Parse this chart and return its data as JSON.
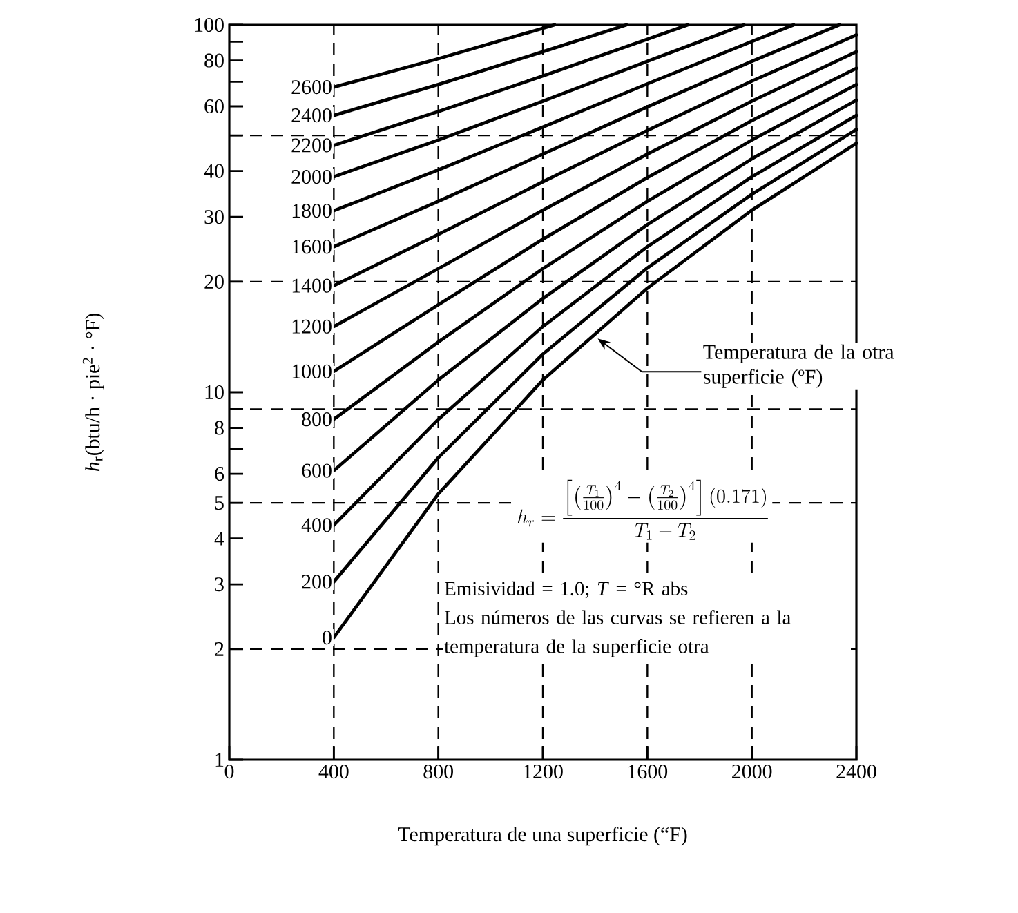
{
  "chart_data": {
    "type": "line",
    "log": "y",
    "xlabel": "Temperatura de una superficie (“F)",
    "ylabel": "*h*$_{r}$(btu/h · pie$^{2}$ · °F)",
    "xlim": [
      0,
      2400
    ],
    "ylim": [
      1,
      100
    ],
    "xticks": [
      0,
      400,
      800,
      1200,
      1600,
      2000,
      2400
    ],
    "yticks": [
      1,
      2,
      3,
      4,
      5,
      6,
      {
        "value": 7,
        "label": null
      },
      8,
      {
        "value": 9,
        "label": null
      },
      10,
      20,
      30,
      40,
      {
        "value": 50,
        "label": null
      },
      60,
      {
        "value": 70,
        "label": null
      },
      80,
      {
        "value": 90,
        "label": null
      },
      100
    ],
    "grid": false,
    "legend": false,
    "marker": "none",
    "line_style": "solid",
    "series": [
      {
        "name": "0",
        "color": "#000000",
        "x": [
          400,
          800,
          1200,
          1600,
          2000,
          2400
        ],
        "values": [
          2.15,
          5.29,
          10.8,
          19.2,
          31.3,
          47.6
        ]
      },
      {
        "name": "200",
        "color": "#000000",
        "x": [
          400,
          800,
          1200,
          1600,
          2000,
          2400
        ],
        "values": [
          3.05,
          6.64,
          12.7,
          21.8,
          34.6,
          51.9
        ]
      },
      {
        "name": "400",
        "color": "#000000",
        "x": [
          400,
          800,
          1200,
          1600,
          2000,
          2400
        ],
        "values": [
          4.35,
          8.44,
          15.1,
          24.9,
          38.6,
          56.7
        ]
      },
      {
        "name": "600",
        "color": "#000000",
        "x": [
          400,
          800,
          1200,
          1600,
          2000,
          2400
        ],
        "values": [
          6.12,
          10.8,
          18.0,
          28.6,
          43.2,
          62.4
        ]
      },
      {
        "name": "800",
        "color": "#000000",
        "x": [
          400,
          800,
          1200,
          1600,
          2000,
          2400
        ],
        "values": [
          8.44,
          13.7,
          21.7,
          33.1,
          48.6,
          68.8
        ]
      },
      {
        "name": "1000",
        "color": "#000000",
        "x": [
          400,
          800,
          1200,
          1600,
          2000,
          2400
        ],
        "values": [
          11.4,
          17.3,
          26.1,
          38.4,
          54.9,
          76.2
        ]
      },
      {
        "name": "1200",
        "color": "#000000",
        "x": [
          400,
          800,
          1200,
          1600,
          2000,
          2400
        ],
        "values": [
          15.1,
          21.7,
          31.3,
          44.5,
          62.0,
          84.5
        ]
      },
      {
        "name": "1400",
        "color": "#000000",
        "x": [
          400,
          800,
          1200,
          1600,
          2000,
          2400
        ],
        "values": [
          19.5,
          26.9,
          37.4,
          51.6,
          70.3,
          93.9
        ]
      },
      {
        "name": "1600",
        "color": "#000000",
        "x": [
          400,
          800,
          1200,
          1600,
          2000,
          2335
        ],
        "values": [
          24.9,
          33.1,
          44.5,
          59.8,
          79.6,
          100
        ]
      },
      {
        "name": "1800",
        "color": "#000000",
        "x": [
          400,
          800,
          1200,
          1600,
          2000,
          2160
        ],
        "values": [
          31.2,
          40.3,
          52.7,
          69.1,
          90.1,
          100
        ]
      },
      {
        "name": "2000",
        "color": "#000000",
        "x": [
          400,
          800,
          1200,
          1600,
          1970
        ],
        "values": [
          38.6,
          48.6,
          62.0,
          79.6,
          100
        ]
      },
      {
        "name": "2200",
        "color": "#000000",
        "x": [
          400,
          800,
          1200,
          1600,
          1755
        ],
        "values": [
          47.0,
          58.1,
          72.6,
          91.4,
          100
        ]
      },
      {
        "name": "2400",
        "color": "#000000",
        "x": [
          400,
          800,
          1200,
          1520
        ],
        "values": [
          56.7,
          68.8,
          84.5,
          100
        ]
      },
      {
        "name": "2600",
        "color": "#000000",
        "x": [
          400,
          800,
          1245
        ],
        "values": [
          67.7,
          80.9,
          100
        ]
      }
    ],
    "ref_lines": [
      {
        "axis": "x",
        "value": 400,
        "color": "#000000",
        "line_style": "dashed"
      },
      {
        "axis": "x",
        "value": 800,
        "color": "#000000",
        "line_style": "dashed"
      },
      {
        "axis": "x",
        "value": 1200,
        "color": "#000000",
        "line_style": "dashed"
      },
      {
        "axis": "x",
        "value": 1600,
        "color": "#000000",
        "line_style": "dashed"
      },
      {
        "axis": "x",
        "value": 2000,
        "color": "#000000",
        "line_style": "dashed"
      },
      {
        "axis": "y",
        "value": 2,
        "color": "#000000",
        "line_style": "dashed"
      },
      {
        "axis": "y",
        "value": 5,
        "color": "#000000",
        "line_style": "dashed"
      },
      {
        "axis": "y",
        "value": 9,
        "color": "#000000",
        "line_style": "dashed"
      },
      {
        "axis": "y",
        "value": 20,
        "color": "#000000",
        "line_style": "dashed"
      },
      {
        "axis": "y",
        "value": 50,
        "color": "#000000",
        "line_style": "dashed"
      }
    ],
    "annotations": [
      {
        "text": "Temperatura de la otra superficie (ºF)",
        "x": 1410,
        "y": 14
      },
      "h_r = \\frac{\\left[\\left(\\frac{T_1}{100}\\right)^4-\\left(\\frac{T_2}{100}\\right)^4\\right](0.171)}{T_1-T_2}",
      "Emisividad = 1.0; *T* = °R abs",
      "Los números de las curvas se refieren a la temperatura de la superficie otra"
    ]
  }
}
